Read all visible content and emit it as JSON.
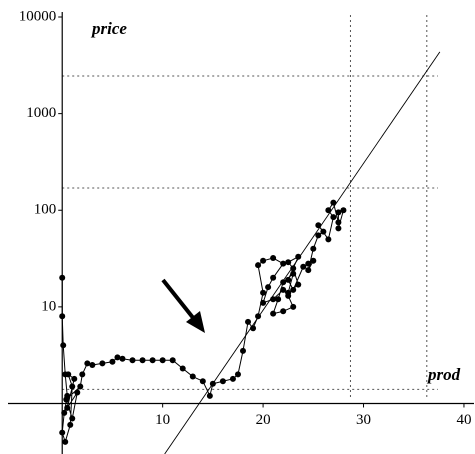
{
  "chart_data": {
    "type": "scatter",
    "connected": true,
    "log_y": true,
    "y_label": "price",
    "x_label": "prod",
    "color": "#000000",
    "xlim": [
      -5,
      41
    ],
    "ylim": [
      0.3,
      15000
    ],
    "xticks": [
      10,
      20,
      30,
      40
    ],
    "yticks": [
      10,
      100,
      1000,
      10000
    ],
    "vlines": [
      28.7,
      36.3
    ],
    "hlines": [
      2450,
      170,
      1.4
    ],
    "trend_line": {
      "x": [
        10.2,
        37.6
      ],
      "y": [
        0.3,
        4360
      ]
    },
    "x": [
      0,
      0,
      0.1,
      0.3,
      0.5,
      0.2,
      0,
      0.3,
      0.8,
      1,
      0.6,
      1.2,
      0.5,
      1.5,
      1,
      0.4,
      1.8,
      2,
      2.5,
      3,
      4,
      5,
      5.5,
      6,
      7,
      8,
      9,
      10,
      11,
      12,
      13,
      14,
      14.7,
      15,
      16,
      17,
      17.5,
      18,
      18.5,
      19,
      19.5,
      20,
      19.5,
      20,
      21,
      22,
      21,
      20.5,
      20,
      21,
      22,
      22.5,
      23,
      22,
      21,
      21.5,
      22,
      23,
      22.5,
      23.5,
      23,
      22.5,
      23.5,
      22.5,
      23,
      24,
      24.5,
      25,
      24.5,
      25,
      25.5,
      26,
      25.5,
      26.5,
      27,
      26.5,
      27,
      27.5,
      27.5,
      28,
      27.5
    ],
    "values": [
      20,
      8,
      4,
      2,
      1.2,
      0.8,
      0.5,
      0.4,
      0.6,
      1.5,
      2,
      1.8,
      0.9,
      1.3,
      0.7,
      1.1,
      1.5,
      2,
      2.6,
      2.5,
      2.6,
      2.7,
      3,
      2.9,
      2.8,
      2.8,
      2.8,
      2.8,
      2.8,
      2.3,
      1.9,
      1.7,
      1.2,
      1.6,
      1.7,
      1.8,
      2,
      3.5,
      7,
      6,
      8,
      14,
      27,
      30,
      32,
      28,
      20,
      16,
      11,
      12,
      15,
      13,
      10,
      9,
      8.5,
      12,
      18,
      22,
      14,
      17,
      25,
      29,
      33,
      19,
      15,
      26,
      28,
      30,
      24,
      40,
      55,
      60,
      70,
      50,
      85,
      100,
      120,
      75,
      95,
      100,
      65
    ]
  }
}
